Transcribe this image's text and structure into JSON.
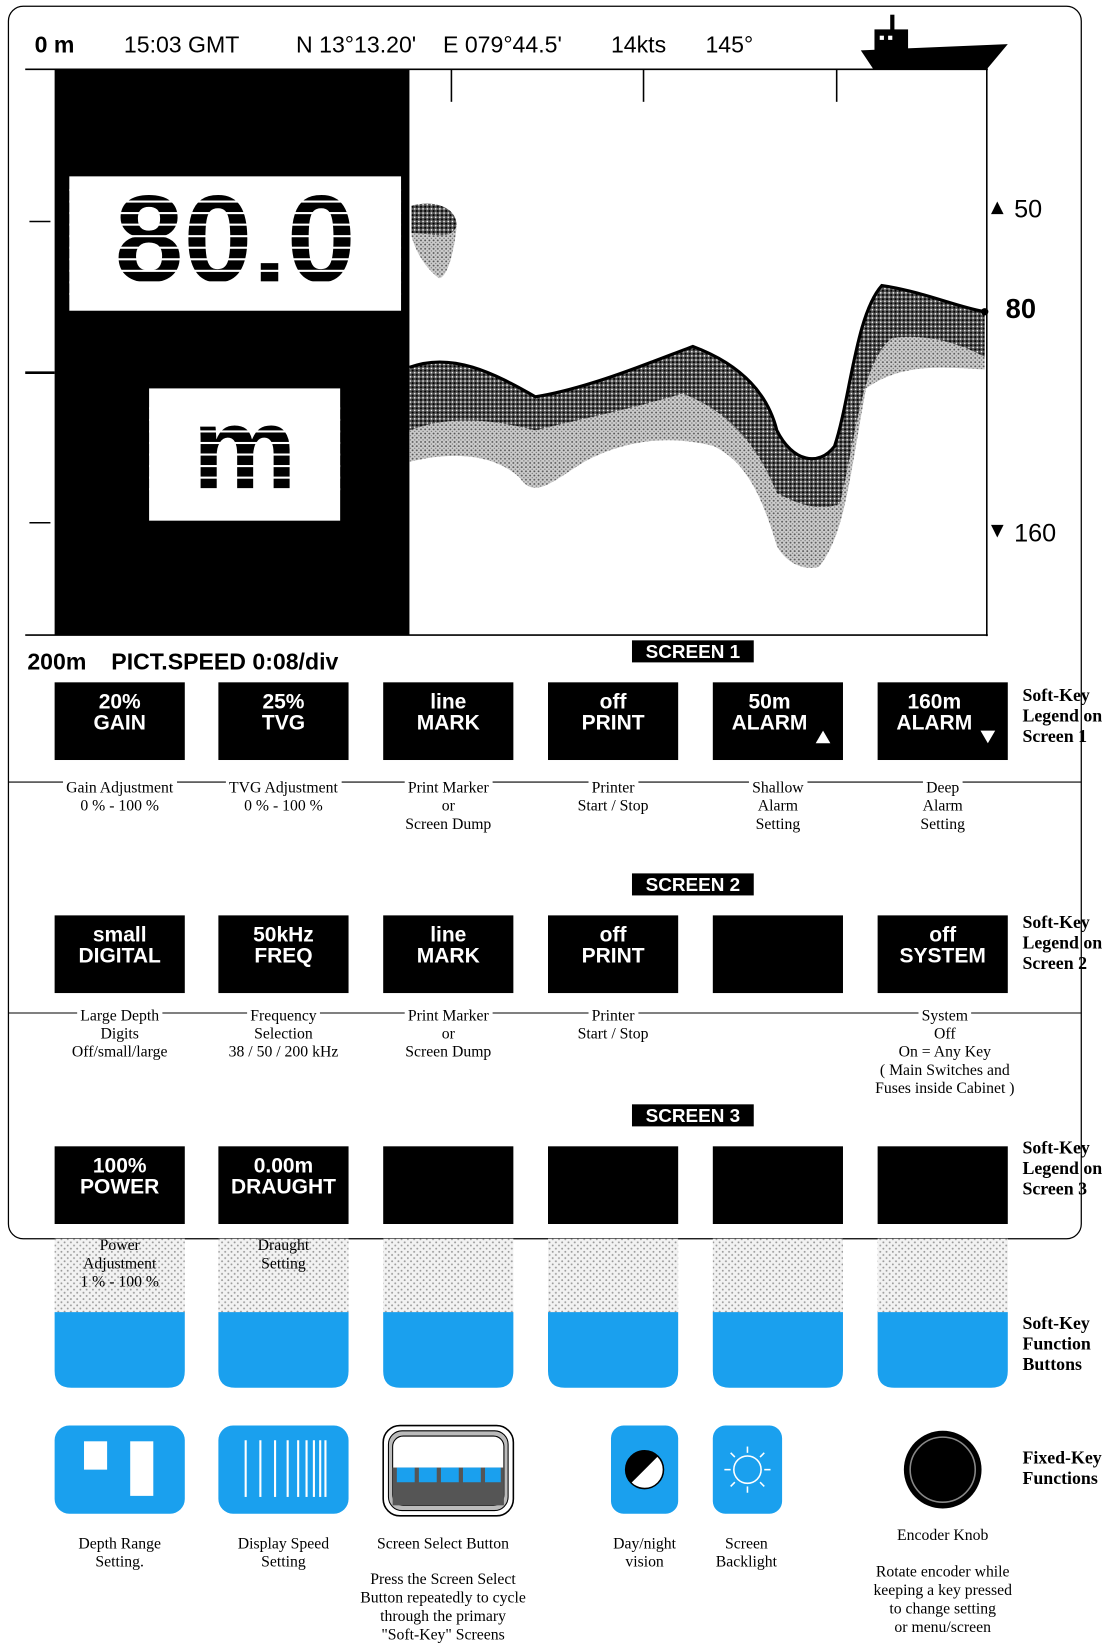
{
  "status_bar": {
    "depth": "0 m",
    "time": "15:03 GMT",
    "latitude": "N 13°13.20'",
    "longitude": "E 079°44.5'",
    "speed": "14kts",
    "heading": "145°"
  },
  "digital_depth": {
    "value": "80.0",
    "unit": "m"
  },
  "scale": {
    "shallow_alarm": "50",
    "current_depth": "80",
    "deep_alarm": "160"
  },
  "footer": {
    "range": "200m",
    "picture_speed": "PICT.SPEED 0:08/div"
  },
  "screens": [
    {
      "title": "SCREEN 1",
      "legend": [
        "Soft-Key",
        "Legend on",
        "Screen 1"
      ],
      "keys": [
        {
          "label": [
            "20%",
            "GAIN"
          ],
          "description": [
            "Gain Adjustment",
            "0 % - 100 %"
          ]
        },
        {
          "label": [
            "25%",
            "TVG"
          ],
          "description": [
            "TVG Adjustment",
            "0 % - 100 %"
          ]
        },
        {
          "label": [
            "line",
            "MARK"
          ],
          "description": [
            "Print Marker",
            "or",
            "Screen Dump"
          ]
        },
        {
          "label": [
            "off",
            "PRINT"
          ],
          "description": [
            "Printer",
            "Start / Stop"
          ]
        },
        {
          "label": [
            "50m",
            "ALARM"
          ],
          "description": [
            "Shallow",
            "Alarm",
            "Setting"
          ]
        },
        {
          "label": [
            "160m",
            "ALARM"
          ],
          "description": [
            "Deep",
            "Alarm",
            "Setting"
          ]
        }
      ]
    },
    {
      "title": "SCREEN 2",
      "legend": [
        "Soft-Key",
        "Legend on",
        "Screen 2"
      ],
      "keys": [
        {
          "label": [
            "small",
            "DIGITAL"
          ],
          "description": [
            "Large Depth",
            "Digits",
            "Off/small/large"
          ]
        },
        {
          "label": [
            "50kHz",
            "FREQ"
          ],
          "description": [
            "Frequency",
            "Selection",
            "38 / 50 / 200 kHz"
          ]
        },
        {
          "label": [
            "line",
            "MARK"
          ],
          "description": [
            "Print Marker",
            "or",
            "Screen Dump"
          ]
        },
        {
          "label": [
            "off",
            "PRINT"
          ],
          "description": [
            "Printer",
            "Start / Stop"
          ]
        },
        {
          "label": [],
          "description": []
        },
        {
          "label": [
            "off",
            "SYSTEM"
          ],
          "description": [
            "System",
            "Off",
            "On = Any Key",
            "( Main Switches and",
            "Fuses inside Cabinet )"
          ]
        }
      ]
    },
    {
      "title": "SCREEN 3",
      "legend": [
        "Soft-Key",
        "Legend on",
        "Screen 3"
      ],
      "keys": [
        {
          "label": [
            "100%",
            "POWER"
          ],
          "description": [
            "Power",
            "Adjustment",
            "1 % - 100 %"
          ]
        },
        {
          "label": [
            "0.00m",
            "DRAUGHT"
          ],
          "description": [
            "Draught",
            "Setting"
          ]
        },
        {
          "label": [],
          "description": []
        },
        {
          "label": [],
          "description": []
        },
        {
          "label": [],
          "description": []
        },
        {
          "label": [],
          "description": []
        }
      ]
    }
  ],
  "function_buttons_legend": [
    "Soft-Key",
    "Function",
    "Buttons"
  ],
  "fixed_keys_legend": [
    "Fixed-Key",
    "Functions"
  ],
  "fixed_keys": [
    {
      "label": [
        "Depth Range",
        "Setting."
      ]
    },
    {
      "label": [
        "Display Speed",
        "Setting"
      ]
    },
    {
      "label": [
        "Screen Select Button"
      ],
      "note": [
        "Press the Screen Select",
        "Button repeatedly to cycle",
        "through the primary",
        "\"Soft-Key\" Screens"
      ]
    },
    {
      "label": [
        "Day/night",
        "vision"
      ]
    },
    {
      "label": [
        "Screen",
        "Backlight"
      ]
    },
    {
      "label": [
        "Encoder Knob"
      ],
      "note": [
        "Rotate encoder while",
        "keeping a key pressed",
        "to change setting",
        "or menu/screen"
      ]
    }
  ]
}
